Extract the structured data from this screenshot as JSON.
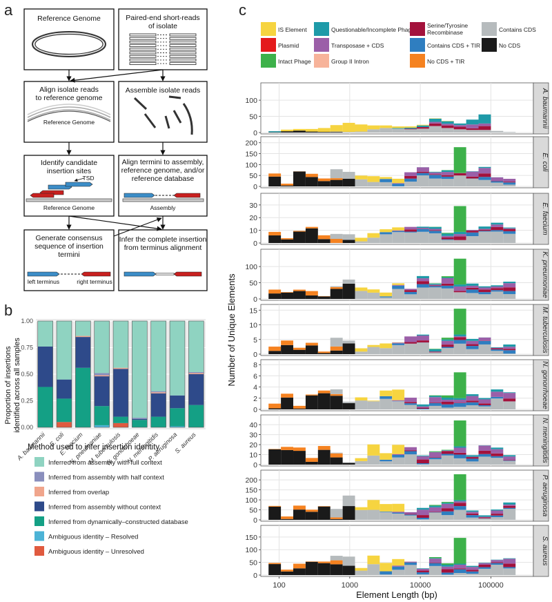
{
  "panel_labels": {
    "a": "a",
    "b": "b",
    "c": "c"
  },
  "panel_a": {
    "boxes": {
      "ref_genome": "Reference Genome",
      "reads_l1": "Paired-end short-reads",
      "reads_l2": "of isolate",
      "align_l1": "Align isolate reads",
      "align_l2": "to reference genome",
      "align_sub": "Reference Genome",
      "assemble": "Assemble isolate reads",
      "ident_l1": "Identify candidate",
      "ident_l2": "insertion sites",
      "ident_tsd": "TSD",
      "ident_sub": "Reference Genome",
      "term_l1": "Align termini to assembly,",
      "term_l2": "reference genome, and/or",
      "term_l3": "reference database",
      "term_sub": "Assembly",
      "cons_l1": "Generate consensus",
      "cons_l2": "sequence of insertion",
      "cons_l3": "termini",
      "cons_left": "left terminus",
      "cons_right": "right terminus",
      "infer_l1": "Infer the complete insertion",
      "infer_l2": "from terminus alignment"
    }
  },
  "panel_b": {
    "ylabel_l1": "Proportion of insertions",
    "ylabel_l2": "identified across all samples",
    "yticks": [
      "0.00",
      "0.25",
      "0.50",
      "0.75",
      "1.00"
    ],
    "legend_title": "Method used to infer insertion identity",
    "legend": [
      {
        "label": "Inferred from assembly with full context",
        "color": "#8fd3c1"
      },
      {
        "label": "Inferred from assembly with half context",
        "color": "#8a8fbd"
      },
      {
        "label": "Inferred from overlap",
        "color": "#f0a58c"
      },
      {
        "label": "Inferred from assembly without context",
        "color": "#2e4a8a"
      },
      {
        "label": "Inferred from dynamically–constructed database",
        "color": "#14a085"
      },
      {
        "label": "Ambiguous identity – Resolved",
        "color": "#4cb3d6"
      },
      {
        "label": "Ambiguous identity – Unresolved",
        "color": "#e05a3f"
      }
    ]
  },
  "chart_data": [
    {
      "type": "bar",
      "stacked": true,
      "categories": [
        "A. baumannii",
        "E. coli",
        "E. faecium",
        "K. pneumoniae",
        "M. tuberculosis",
        "N. gonorrhoeae",
        "N. meningitidis",
        "P. aeruginosa",
        "S. aureus"
      ],
      "ylabel": "Proportion of insertions identified across all samples",
      "ylim": [
        0,
        1
      ],
      "series": [
        {
          "name": "Ambiguous identity – Unresolved",
          "values": [
            0.0,
            0.05,
            0.0,
            0.0,
            0.04,
            0.0,
            0.0,
            0.0,
            0.0
          ]
        },
        {
          "name": "Ambiguous identity – Resolved",
          "values": [
            0.0,
            0.0,
            0.0,
            0.02,
            0.0,
            0.0,
            0.0,
            0.01,
            0.0
          ]
        },
        {
          "name": "Inferred from dynamically–constructed database",
          "values": [
            0.38,
            0.22,
            0.56,
            0.18,
            0.06,
            0.07,
            0.1,
            0.17,
            0.21
          ]
        },
        {
          "name": "Inferred from assembly without context",
          "values": [
            0.38,
            0.18,
            0.29,
            0.28,
            0.45,
            0.01,
            0.22,
            0.12,
            0.29
          ]
        },
        {
          "name": "Inferred from overlap",
          "values": [
            0.0,
            0.0,
            0.01,
            0.01,
            0.01,
            0.0,
            0.01,
            0.0,
            0.01
          ]
        },
        {
          "name": "Inferred from assembly with half context",
          "values": [
            0.0,
            0.0,
            0.0,
            0.02,
            0.0,
            0.01,
            0.01,
            0.0,
            0.01
          ]
        },
        {
          "name": "Inferred from assembly with full context",
          "values": [
            0.24,
            0.55,
            0.14,
            0.49,
            0.44,
            0.91,
            0.66,
            0.7,
            0.48
          ]
        }
      ]
    },
    {
      "type": "bar",
      "stacked": true,
      "xlabel": "Element Length (bp)",
      "ylabel": "Number of Unique Elements",
      "x_scale": "log",
      "xticks": [
        "100",
        "1000",
        "10000",
        "100000"
      ],
      "categories_legend": [
        {
          "name": "IS Element",
          "color": "#f6d440"
        },
        {
          "name": "Plasmid",
          "color": "#e41a1c"
        },
        {
          "name": "Intact Phage",
          "color": "#3db14a"
        },
        {
          "name": "Questionable/Incomplete Phage",
          "color": "#1e9aa8"
        },
        {
          "name": "Transposase + CDS",
          "color": "#9b5fa8"
        },
        {
          "name": "Group II Intron",
          "color": "#f7b39a"
        },
        {
          "name": "Serine/Tyrosine Recombinase",
          "color": "#a3123c"
        },
        {
          "name": "Contains CDS + TIR",
          "color": "#2f7ec0"
        },
        {
          "name": "No CDS + TIR",
          "color": "#f58220"
        },
        {
          "name": "Contains CDS",
          "color": "#b6bbbd"
        },
        {
          "name": "No CDS",
          "color": "#1a1a1a"
        }
      ],
      "facets": [
        {
          "name": "A. baumannii",
          "yticks": [
            0,
            50,
            100
          ],
          "ymax": 145,
          "bins": [
            [
              0,
              0,
              0,
              3,
              0,
              0,
              0,
              0,
              0,
              0,
              1
            ],
            [
              5,
              0,
              0,
              0,
              0,
              0,
              0,
              0,
              0,
              0,
              4
            ],
            [
              5,
              0,
              0,
              0,
              0,
              0,
              0,
              0,
              0,
              0,
              6
            ],
            [
              8,
              0,
              0,
              0,
              0,
              0,
              0,
              0,
              0,
              0,
              3
            ],
            [
              12,
              0,
              0,
              0,
              0,
              0,
              0,
              0,
              0,
              0,
              2
            ],
            [
              20,
              0,
              0,
              0,
              0,
              0,
              0,
              0,
              0,
              1,
              2
            ],
            [
              28,
              0,
              0,
              0,
              0,
              0,
              0,
              0,
              0,
              2,
              0
            ],
            [
              22,
              0,
              0,
              0,
              0,
              0,
              0,
              0,
              0,
              3,
              0
            ],
            [
              12,
              0,
              0,
              0,
              0,
              0,
              0,
              0,
              0,
              10,
              0
            ],
            [
              8,
              0,
              0,
              0,
              0,
              0,
              0,
              0,
              0,
              14,
              0
            ],
            [
              5,
              0,
              0,
              2,
              0,
              0,
              0,
              0,
              0,
              12,
              0
            ],
            [
              4,
              0,
              0,
              3,
              0,
              0,
              2,
              0,
              0,
              10,
              0
            ],
            [
              2,
              0,
              0,
              5,
              0,
              0,
              5,
              0,
              0,
              12,
              0
            ],
            [
              1,
              0,
              0,
              10,
              5,
              0,
              8,
              0,
              0,
              20,
              0
            ],
            [
              1,
              0,
              0,
              8,
              5,
              0,
              8,
              0,
              0,
              14,
              0
            ],
            [
              0,
              0,
              0,
              5,
              5,
              0,
              8,
              0,
              0,
              10,
              0
            ],
            [
              0,
              0,
              0,
              15,
              12,
              0,
              5,
              0,
              0,
              8,
              0
            ],
            [
              0,
              0,
              0,
              28,
              8,
              0,
              12,
              0,
              0,
              8,
              0
            ],
            [
              0,
              0,
              0,
              0,
              0,
              0,
              0,
              0,
              0,
              5,
              0
            ],
            [
              0,
              0,
              0,
              0,
              0,
              0,
              0,
              0,
              0,
              2,
              0
            ]
          ]
        },
        {
          "name": "E. coli",
          "yticks": [
            0,
            50,
            100,
            150,
            200
          ],
          "ymax": 215
        },
        {
          "name": "E. faecium",
          "yticks": [
            0,
            10,
            20,
            30
          ],
          "ymax": 37
        },
        {
          "name": "K. pneumoniae",
          "yticks": [
            0,
            50,
            100
          ],
          "ymax": 145
        },
        {
          "name": "M. tuberculosis",
          "yticks": [
            0,
            5,
            10,
            15
          ],
          "ymax": 16
        },
        {
          "name": "N. gonorrhoeae",
          "yticks": [
            0,
            2,
            4,
            6,
            8
          ],
          "ymax": 8.4
        },
        {
          "name": "N. meningitidis",
          "yticks": [
            0,
            10,
            20,
            30,
            40
          ],
          "ymax": 47
        },
        {
          "name": "P. aeruginosa",
          "yticks": [
            0,
            50,
            100,
            150,
            200
          ],
          "ymax": 235
        },
        {
          "name": "S. aureus",
          "yticks": [
            0,
            50,
            100,
            150
          ],
          "ymax": 185
        }
      ]
    }
  ]
}
